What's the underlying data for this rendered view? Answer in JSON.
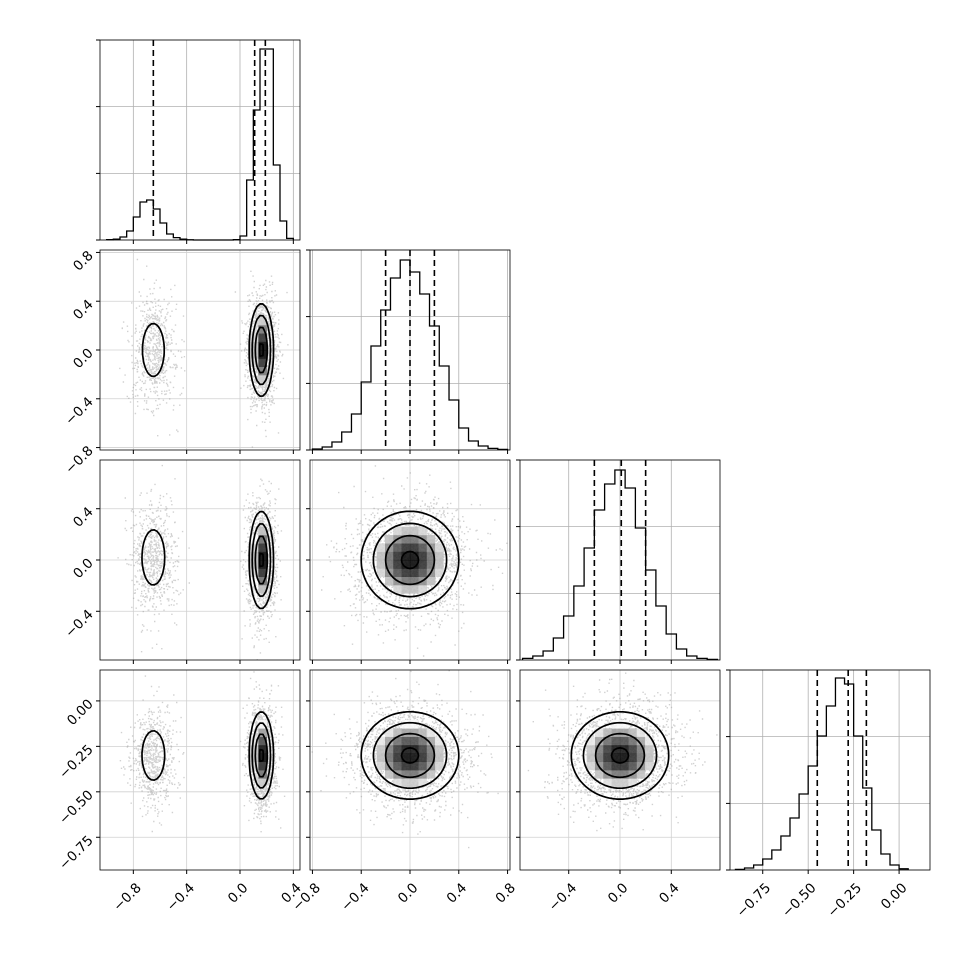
{
  "chart_data": {
    "type": "corner",
    "title": "",
    "grid": true,
    "legend": "none",
    "histogram_color": "#000000",
    "scatter_color": "#9a9a9a",
    "params": [
      {
        "name": "",
        "range": [
          -1.05,
          0.45
        ],
        "ticks": [
          -0.8,
          -0.4,
          0.0,
          0.4
        ],
        "tick_labels": [
          "−0.8",
          "−0.4",
          "0.0",
          "0.4"
        ]
      },
      {
        "name": "",
        "range": [
          -0.82,
          0.82
        ],
        "ticks": [
          -0.8,
          -0.4,
          0.0,
          0.4,
          0.8
        ],
        "tick_labels": [
          "−0.8",
          "−0.4",
          "0.0",
          "0.4",
          "0.8"
        ]
      },
      {
        "name": "",
        "range": [
          -0.78,
          0.78
        ],
        "ticks": [
          -0.4,
          0.0,
          0.4
        ],
        "tick_labels": [
          "−0.4",
          "0.0",
          "0.4"
        ]
      },
      {
        "name": "",
        "range": [
          -0.93,
          0.17
        ],
        "ticks": [
          -0.75,
          -0.5,
          -0.25,
          0.0
        ],
        "tick_labels": [
          "−0.75",
          "−0.50",
          "−0.25",
          "0.00"
        ]
      }
    ],
    "histograms": [
      {
        "param": 0,
        "bin_edges": [
          -1.0,
          -0.95,
          -0.9,
          -0.85,
          -0.8,
          -0.75,
          -0.7,
          -0.65,
          -0.6,
          -0.55,
          -0.5,
          -0.45,
          -0.4,
          -0.35,
          -0.3,
          -0.25,
          -0.2,
          -0.15,
          -0.1,
          -0.05,
          0.0,
          0.05,
          0.1,
          0.15,
          0.2,
          0.25,
          0.3,
          0.35,
          0.4
        ],
        "counts": [
          2,
          4,
          15,
          45,
          115,
          190,
          200,
          155,
          85,
          30,
          12,
          4,
          1,
          0,
          0,
          0,
          0,
          0,
          0,
          2,
          20,
          300,
          650,
          955,
          955,
          375,
          95,
          8
        ],
        "ylim": [
          0,
          1000
        ],
        "quantiles": [
          -0.65,
          0.11,
          0.19
        ]
      },
      {
        "param": 1,
        "bin_edges": [
          -0.8,
          -0.72,
          -0.64,
          -0.56,
          -0.48,
          -0.4,
          -0.32,
          -0.24,
          -0.16,
          -0.08,
          0.0,
          0.08,
          0.16,
          0.24,
          0.32,
          0.4,
          0.48,
          0.56,
          0.64,
          0.72,
          0.8
        ],
        "counts": [
          5,
          15,
          40,
          90,
          180,
          340,
          520,
          700,
          860,
          950,
          890,
          780,
          620,
          420,
          250,
          110,
          45,
          20,
          8,
          3
        ],
        "ylim": [
          0,
          1000
        ],
        "quantiles": [
          -0.2,
          0.0,
          0.2
        ]
      },
      {
        "param": 2,
        "bin_edges": [
          -0.76,
          -0.68,
          -0.6,
          -0.52,
          -0.44,
          -0.36,
          -0.28,
          -0.2,
          -0.12,
          -0.04,
          0.04,
          0.12,
          0.2,
          0.28,
          0.36,
          0.44,
          0.52,
          0.6,
          0.68,
          0.76
        ],
        "counts": [
          8,
          20,
          45,
          110,
          220,
          370,
          560,
          750,
          880,
          950,
          860,
          660,
          450,
          270,
          130,
          55,
          20,
          8,
          3
        ],
        "ylim": [
          0,
          1000
        ],
        "quantiles": [
          -0.2,
          0.01,
          0.2
        ]
      },
      {
        "param": 3,
        "bin_edges": [
          -0.9,
          -0.85,
          -0.8,
          -0.75,
          -0.7,
          -0.65,
          -0.6,
          -0.55,
          -0.5,
          -0.45,
          -0.4,
          -0.35,
          -0.3,
          -0.25,
          -0.2,
          -0.15,
          -0.1,
          -0.05,
          0.0,
          0.05
        ],
        "counts": [
          3,
          10,
          25,
          55,
          100,
          170,
          260,
          380,
          520,
          670,
          820,
          960,
          930,
          670,
          410,
          200,
          80,
          25,
          6
        ],
        "ylim": [
          0,
          1000
        ],
        "quantiles": [
          -0.45,
          -0.28,
          -0.18
        ]
      }
    ],
    "scatter_panels": [
      {
        "x_param": 0,
        "y_param": 1,
        "clusters": [
          {
            "cx": -0.65,
            "cy": 0.0,
            "sx": 0.075,
            "sy": 0.2,
            "w": 0.3
          },
          {
            "cx": 0.16,
            "cy": 0.0,
            "sx": 0.045,
            "sy": 0.19,
            "w": 0.7
          }
        ]
      },
      {
        "x_param": 0,
        "y_param": 2,
        "clusters": [
          {
            "cx": -0.65,
            "cy": 0.02,
            "sx": 0.075,
            "sy": 0.19,
            "w": 0.3
          },
          {
            "cx": 0.16,
            "cy": 0.0,
            "sx": 0.045,
            "sy": 0.19,
            "w": 0.7
          }
        ]
      },
      {
        "x_param": 0,
        "y_param": 3,
        "clusters": [
          {
            "cx": -0.65,
            "cy": -0.3,
            "sx": 0.075,
            "sy": 0.12,
            "w": 0.3
          },
          {
            "cx": 0.16,
            "cy": -0.3,
            "sx": 0.045,
            "sy": 0.12,
            "w": 0.7
          }
        ]
      },
      {
        "x_param": 1,
        "y_param": 2,
        "clusters": [
          {
            "cx": 0.0,
            "cy": 0.0,
            "sx": 0.2,
            "sy": 0.19,
            "w": 1.0
          }
        ]
      },
      {
        "x_param": 1,
        "y_param": 3,
        "clusters": [
          {
            "cx": 0.0,
            "cy": -0.3,
            "sx": 0.2,
            "sy": 0.12,
            "w": 1.0
          }
        ]
      },
      {
        "x_param": 2,
        "y_param": 3,
        "clusters": [
          {
            "cx": 0.0,
            "cy": -0.3,
            "sx": 0.19,
            "sy": 0.12,
            "w": 1.0
          }
        ]
      }
    ]
  }
}
